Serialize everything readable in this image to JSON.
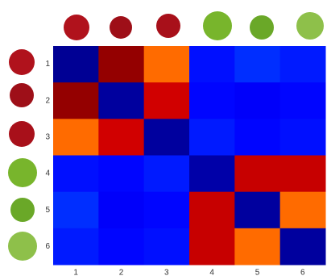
{
  "chart_data": {
    "type": "heatmap",
    "x_categories": [
      "1",
      "2",
      "3",
      "4",
      "5",
      "6"
    ],
    "y_categories": [
      "1",
      "2",
      "3",
      "4",
      "5",
      "6"
    ],
    "values": [
      [
        0.02,
        0.98,
        0.77,
        0.14,
        0.17,
        0.15
      ],
      [
        0.98,
        0.03,
        0.92,
        0.13,
        0.12,
        0.13
      ],
      [
        0.77,
        0.92,
        0.03,
        0.15,
        0.13,
        0.14
      ],
      [
        0.14,
        0.13,
        0.15,
        0.04,
        0.93,
        0.93
      ],
      [
        0.17,
        0.12,
        0.13,
        0.93,
        0.03,
        0.77
      ],
      [
        0.15,
        0.13,
        0.14,
        0.93,
        0.77,
        0.03
      ]
    ],
    "colormap": "jet",
    "zlim": [
      0,
      1
    ]
  }
}
